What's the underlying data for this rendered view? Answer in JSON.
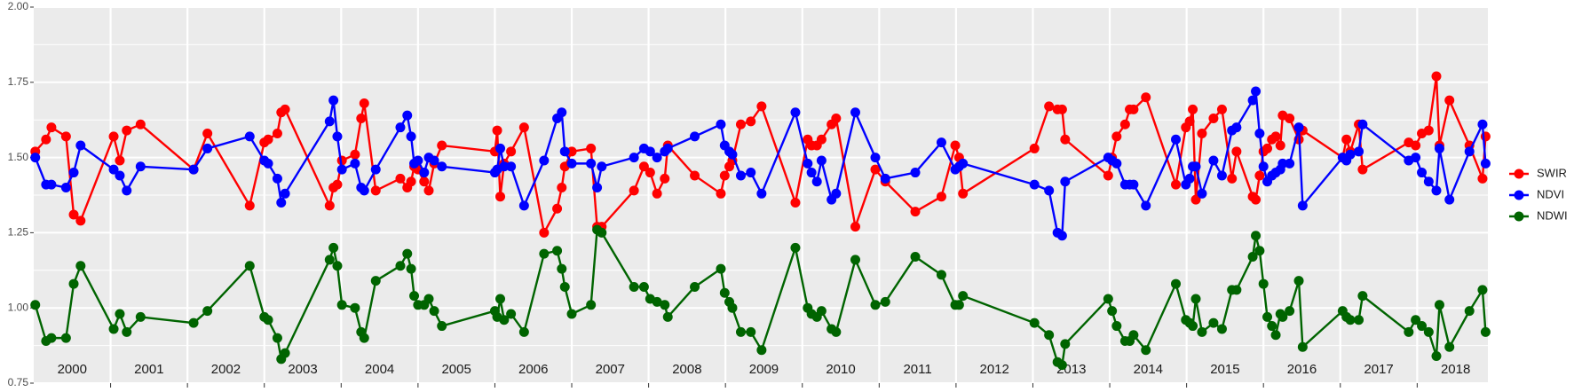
{
  "chart_data": {
    "type": "line",
    "x": [
      2000.02,
      2000.16,
      2000.23,
      2000.42,
      2000.52,
      2000.61,
      2001.04,
      2001.12,
      2001.21,
      2001.39,
      2002.08,
      2002.26,
      2002.81,
      2003.0,
      2003.05,
      2003.17,
      2003.22,
      2003.27,
      2003.85,
      2003.9,
      2003.95,
      2004.01,
      2004.18,
      2004.26,
      2004.3,
      2004.45,
      2004.77,
      2004.86,
      2004.91,
      2004.95,
      2005.0,
      2005.08,
      2005.14,
      2005.21,
      2005.31,
      2006.0,
      2006.03,
      2006.07,
      2006.12,
      2006.21,
      2006.38,
      2006.64,
      2006.81,
      2006.87,
      2006.91,
      2007.0,
      2007.25,
      2007.33,
      2007.39,
      2007.81,
      2007.94,
      2008.02,
      2008.11,
      2008.21,
      2008.25,
      2008.6,
      2008.94,
      2008.99,
      2009.05,
      2009.09,
      2009.2,
      2009.33,
      2009.47,
      2009.91,
      2010.07,
      2010.12,
      2010.19,
      2010.25,
      2010.38,
      2010.44,
      2010.69,
      2010.95,
      2011.08,
      2011.47,
      2011.81,
      2011.99,
      2012.04,
      2012.09,
      2013.02,
      2013.21,
      2013.32,
      2013.38,
      2013.42,
      2013.98,
      2014.03,
      2014.09,
      2014.2,
      2014.26,
      2014.31,
      2014.47,
      2014.86,
      2014.99,
      2015.04,
      2015.08,
      2015.12,
      2015.2,
      2015.35,
      2015.46,
      2015.59,
      2015.65,
      2015.86,
      2015.9,
      2015.95,
      2016.0,
      2016.05,
      2016.11,
      2016.16,
      2016.22,
      2016.25,
      2016.34,
      2016.46,
      2016.51,
      2017.03,
      2017.08,
      2017.13,
      2017.24,
      2017.29,
      2017.89,
      2017.98,
      2018.06,
      2018.15,
      2018.25,
      2018.29,
      2018.42,
      2018.68,
      2018.85,
      2018.89
    ],
    "series": [
      {
        "name": "SWIR",
        "color": "#ff0000",
        "values": [
          1.52,
          1.56,
          1.6,
          1.57,
          1.31,
          1.29,
          1.57,
          1.49,
          1.59,
          1.61,
          1.46,
          1.58,
          1.34,
          1.55,
          1.56,
          1.58,
          1.65,
          1.66,
          1.34,
          1.4,
          1.41,
          1.49,
          1.51,
          1.63,
          1.68,
          1.39,
          1.43,
          1.4,
          1.42,
          1.47,
          1.46,
          1.42,
          1.39,
          1.48,
          1.54,
          1.52,
          1.59,
          1.37,
          1.48,
          1.52,
          1.6,
          1.25,
          1.33,
          1.4,
          1.47,
          1.52,
          1.53,
          1.27,
          1.27,
          1.39,
          1.47,
          1.45,
          1.38,
          1.43,
          1.54,
          1.44,
          1.38,
          1.44,
          1.47,
          1.49,
          1.61,
          1.62,
          1.67,
          1.35,
          1.56,
          1.54,
          1.54,
          1.56,
          1.61,
          1.63,
          1.27,
          1.46,
          1.42,
          1.32,
          1.37,
          1.54,
          1.5,
          1.38,
          1.53,
          1.67,
          1.66,
          1.66,
          1.56,
          1.44,
          1.5,
          1.57,
          1.61,
          1.66,
          1.66,
          1.7,
          1.41,
          1.6,
          1.62,
          1.66,
          1.36,
          1.58,
          1.63,
          1.66,
          1.43,
          1.52,
          1.37,
          1.36,
          1.44,
          1.52,
          1.53,
          1.56,
          1.57,
          1.54,
          1.64,
          1.63,
          1.56,
          1.59,
          1.5,
          1.56,
          1.52,
          1.61,
          1.46,
          1.55,
          1.54,
          1.58,
          1.59,
          1.77,
          1.54,
          1.69,
          1.54,
          1.43,
          1.57
        ]
      },
      {
        "name": "NDVI",
        "color": "#0000ff",
        "values": [
          1.5,
          1.41,
          1.41,
          1.4,
          1.45,
          1.54,
          1.46,
          1.44,
          1.39,
          1.47,
          1.46,
          1.53,
          1.57,
          1.49,
          1.48,
          1.43,
          1.35,
          1.38,
          1.62,
          1.69,
          1.57,
          1.46,
          1.48,
          1.4,
          1.39,
          1.46,
          1.6,
          1.64,
          1.57,
          1.48,
          1.49,
          1.45,
          1.5,
          1.49,
          1.47,
          1.45,
          1.46,
          1.53,
          1.47,
          1.47,
          1.34,
          1.49,
          1.63,
          1.65,
          1.52,
          1.48,
          1.48,
          1.4,
          1.47,
          1.5,
          1.53,
          1.52,
          1.5,
          1.52,
          1.53,
          1.57,
          1.61,
          1.54,
          1.52,
          1.51,
          1.44,
          1.45,
          1.38,
          1.65,
          1.48,
          1.45,
          1.42,
          1.49,
          1.36,
          1.38,
          1.65,
          1.5,
          1.43,
          1.45,
          1.55,
          1.46,
          1.47,
          1.48,
          1.41,
          1.39,
          1.25,
          1.24,
          1.42,
          1.5,
          1.49,
          1.48,
          1.41,
          1.41,
          1.41,
          1.34,
          1.56,
          1.41,
          1.43,
          1.47,
          1.47,
          1.38,
          1.49,
          1.44,
          1.59,
          1.6,
          1.69,
          1.72,
          1.58,
          1.47,
          1.42,
          1.44,
          1.45,
          1.46,
          1.48,
          1.48,
          1.6,
          1.34,
          1.5,
          1.49,
          1.51,
          1.52,
          1.61,
          1.49,
          1.5,
          1.45,
          1.42,
          1.39,
          1.53,
          1.36,
          1.52,
          1.61,
          1.48
        ]
      },
      {
        "name": "NDWI",
        "color": "#006400",
        "values": [
          1.01,
          0.89,
          0.9,
          0.9,
          1.08,
          1.14,
          0.93,
          0.98,
          0.92,
          0.97,
          0.95,
          0.99,
          1.14,
          0.97,
          0.96,
          0.9,
          0.83,
          0.85,
          1.16,
          1.2,
          1.14,
          1.01,
          1.0,
          0.92,
          0.9,
          1.09,
          1.14,
          1.18,
          1.13,
          1.04,
          1.01,
          1.01,
          1.03,
          0.99,
          0.94,
          0.99,
          0.97,
          1.03,
          0.96,
          0.98,
          0.92,
          1.18,
          1.19,
          1.13,
          1.07,
          0.98,
          1.01,
          1.26,
          1.25,
          1.07,
          1.07,
          1.03,
          1.02,
          1.01,
          0.97,
          1.07,
          1.13,
          1.05,
          1.02,
          1.0,
          0.92,
          0.92,
          0.86,
          1.2,
          1.0,
          0.98,
          0.97,
          0.99,
          0.93,
          0.92,
          1.16,
          1.01,
          1.02,
          1.17,
          1.11,
          1.01,
          1.01,
          1.04,
          0.95,
          0.91,
          0.82,
          0.81,
          0.88,
          1.03,
          0.99,
          0.94,
          0.89,
          0.89,
          0.91,
          0.86,
          1.08,
          0.96,
          0.95,
          0.94,
          1.03,
          0.92,
          0.95,
          0.93,
          1.06,
          1.06,
          1.17,
          1.24,
          1.19,
          1.08,
          0.97,
          0.94,
          0.91,
          0.98,
          0.97,
          0.99,
          1.09,
          0.87,
          0.99,
          0.97,
          0.96,
          0.96,
          1.04,
          0.92,
          0.96,
          0.94,
          0.92,
          0.84,
          1.01,
          0.87,
          0.99,
          1.06,
          0.92
        ]
      }
    ],
    "xlim": [
      2000,
      2018.92
    ],
    "xticks": [
      {
        "value": 2000.5,
        "label": "2000"
      },
      {
        "value": 2001.5,
        "label": "2001"
      },
      {
        "value": 2002.5,
        "label": "2002"
      },
      {
        "value": 2003.5,
        "label": "2003"
      },
      {
        "value": 2004.5,
        "label": "2004"
      },
      {
        "value": 2005.5,
        "label": "2005"
      },
      {
        "value": 2006.5,
        "label": "2006"
      },
      {
        "value": 2007.5,
        "label": "2007"
      },
      {
        "value": 2008.5,
        "label": "2008"
      },
      {
        "value": 2009.5,
        "label": "2009"
      },
      {
        "value": 2010.5,
        "label": "2010"
      },
      {
        "value": 2011.5,
        "label": "2011"
      },
      {
        "value": 2012.5,
        "label": "2012"
      },
      {
        "value": 2013.5,
        "label": "2013"
      },
      {
        "value": 2014.5,
        "label": "2014"
      },
      {
        "value": 2015.5,
        "label": "2015"
      },
      {
        "value": 2016.5,
        "label": "2016"
      },
      {
        "value": 2017.5,
        "label": "2017"
      },
      {
        "value": 2018.5,
        "label": "2018"
      }
    ],
    "ylim": [
      0.75,
      2.0
    ],
    "yticks": [
      0.75,
      {
        "value": 1,
        "label": "1.00"
      },
      1.25,
      {
        "value": 1.5,
        "label": "1.50"
      },
      1.75,
      {
        "value": 2,
        "label": "2.00"
      }
    ],
    "grid": true,
    "legend": "right"
  }
}
